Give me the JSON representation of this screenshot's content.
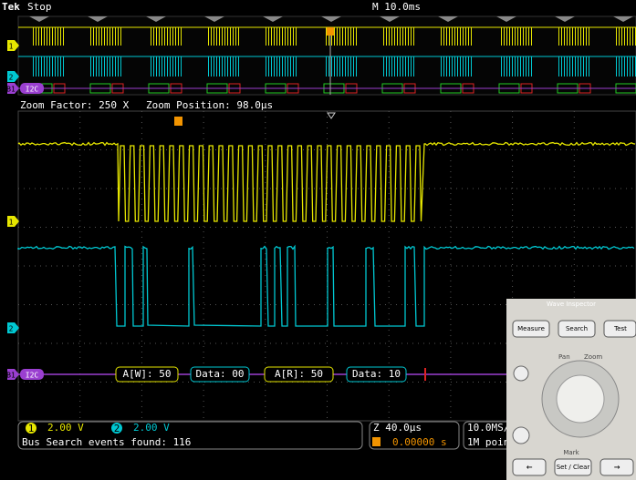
{
  "header": {
    "brand": "Tek",
    "status": "Stop",
    "timebase": "M 10.0ms"
  },
  "zoom": {
    "factor": "Zoom Factor: 250 X",
    "position": "Zoom Position: 98.0µs"
  },
  "channels": {
    "ch1": "1",
    "ch2": "2",
    "bus": "B1"
  },
  "bus": {
    "label": "I2C",
    "packets": [
      "A[W]: 50",
      "Data: 00",
      "A[R]: 50",
      "Data: 10"
    ]
  },
  "status_bar": {
    "ch1": {
      "number": "1",
      "scale": "2.00 V"
    },
    "ch2": {
      "number": "2",
      "scale": "2.00 V"
    },
    "bus_search": "Bus Search events found: 116",
    "zoom_scale": "Z 40.0µs",
    "trigger_pos": "0.00000 s",
    "sample_rate": "10.0MS/",
    "record": "1M poin"
  },
  "panel": {
    "title": "Wave Inspector",
    "buttons": [
      "Measure",
      "Search",
      "Test"
    ],
    "pan": "Pan",
    "zoom": "Zoom",
    "mark": "Mark",
    "set_clear": "Set / Clear"
  }
}
